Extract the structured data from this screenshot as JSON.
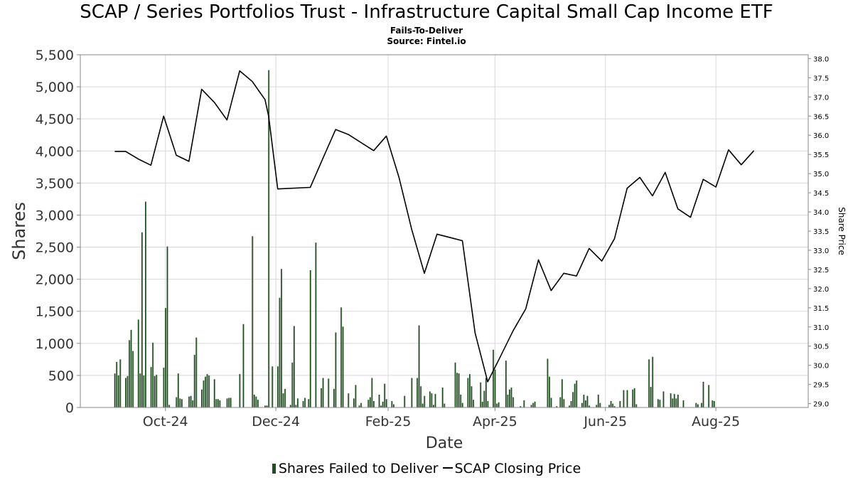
{
  "title": "SCAP / Series Portfolios Trust - Infrastructure Capital Small Cap Income ETF",
  "subtitle_lines": [
    "Fails-To-Deliver",
    "Source: Fintel.io"
  ],
  "legend": {
    "bars_label": "Shares Failed to Deliver",
    "line_label": "SCAP Closing Price"
  },
  "colors": {
    "bar": "#1a4a1a",
    "bar_shadow": "#8a9a8a",
    "line": "#000000",
    "grid": "#d9d9d9"
  },
  "chart_data": {
    "type": "bar",
    "xlabel": "Date",
    "ylabel": "Shares",
    "y2label": "Share Price",
    "ylim": [
      0,
      5500
    ],
    "y2lim": [
      28.9,
      38.1
    ],
    "x_ticks": [
      "Oct-24",
      "Dec-24",
      "Feb-25",
      "Apr-25",
      "Jun-25",
      "Aug-25"
    ],
    "x_tick_dates": [
      "2024-10-01",
      "2024-12-01",
      "2025-02-01",
      "2025-04-01",
      "2025-06-01",
      "2025-08-01"
    ],
    "y_ticks": [
      "0",
      "500",
      "1,000",
      "1,500",
      "2,000",
      "2,500",
      "3,000",
      "3,500",
      "4,000",
      "4,500",
      "5,000",
      "5,500"
    ],
    "y2_ticks": [
      "29.0",
      "29.5",
      "30.0",
      "30.5",
      "31.0",
      "31.5",
      "32.0",
      "32.5",
      "33.0",
      "33.5",
      "34.0",
      "34.5",
      "35.0",
      "35.5",
      "36.0",
      "36.5",
      "37.0",
      "37.5",
      "38.0"
    ],
    "x_range": [
      "2024-08-15",
      "2025-09-21"
    ],
    "grid": true,
    "series": [
      {
        "name": "Shares Failed to Deliver",
        "type": "bar",
        "points": [
          [
            "2024-09-03",
            530
          ],
          [
            "2024-09-04",
            710
          ],
          [
            "2024-09-05",
            500
          ],
          [
            "2024-09-06",
            750
          ],
          [
            "2024-09-09",
            460
          ],
          [
            "2024-09-10",
            490
          ],
          [
            "2024-09-11",
            1050
          ],
          [
            "2024-09-12",
            1210
          ],
          [
            "2024-09-13",
            880
          ],
          [
            "2024-09-16",
            1370
          ],
          [
            "2024-09-17",
            530
          ],
          [
            "2024-09-18",
            2730
          ],
          [
            "2024-09-19",
            500
          ],
          [
            "2024-09-20",
            3210
          ],
          [
            "2024-09-23",
            630
          ],
          [
            "2024-09-24",
            1010
          ],
          [
            "2024-09-25",
            490
          ],
          [
            "2024-09-26",
            510
          ],
          [
            "2024-09-30",
            620
          ],
          [
            "2024-10-01",
            1550
          ],
          [
            "2024-10-02",
            2510
          ],
          [
            "2024-10-03",
            40
          ],
          [
            "2024-10-07",
            160
          ],
          [
            "2024-10-08",
            530
          ],
          [
            "2024-10-09",
            140
          ],
          [
            "2024-10-10",
            130
          ],
          [
            "2024-10-14",
            170
          ],
          [
            "2024-10-15",
            180
          ],
          [
            "2024-10-16",
            110
          ],
          [
            "2024-10-17",
            820
          ],
          [
            "2024-10-18",
            1090
          ],
          [
            "2024-10-21",
            280
          ],
          [
            "2024-10-22",
            420
          ],
          [
            "2024-10-23",
            480
          ],
          [
            "2024-10-24",
            520
          ],
          [
            "2024-10-25",
            500
          ],
          [
            "2024-10-28",
            440
          ],
          [
            "2024-10-29",
            130
          ],
          [
            "2024-10-30",
            130
          ],
          [
            "2024-10-31",
            110
          ],
          [
            "2024-11-04",
            140
          ],
          [
            "2024-11-05",
            150
          ],
          [
            "2024-11-06",
            150
          ],
          [
            "2024-11-08",
            0
          ],
          [
            "2024-11-11",
            520
          ],
          [
            "2024-11-13",
            1300
          ],
          [
            "2024-11-15",
            0
          ],
          [
            "2024-11-18",
            2670
          ],
          [
            "2024-11-19",
            200
          ],
          [
            "2024-11-20",
            170
          ],
          [
            "2024-11-21",
            120
          ],
          [
            "2024-11-25",
            30
          ],
          [
            "2024-11-26",
            30
          ],
          [
            "2024-11-27",
            5260
          ],
          [
            "2024-11-29",
            640
          ],
          [
            "2024-12-02",
            640
          ],
          [
            "2024-12-03",
            1710
          ],
          [
            "2024-12-04",
            2160
          ],
          [
            "2024-12-05",
            220
          ],
          [
            "2024-12-06",
            290
          ],
          [
            "2024-12-09",
            40
          ],
          [
            "2024-12-10",
            700
          ],
          [
            "2024-12-11",
            1270
          ],
          [
            "2024-12-12",
            40
          ],
          [
            "2024-12-13",
            140
          ],
          [
            "2024-12-16",
            100
          ],
          [
            "2024-12-17",
            150
          ],
          [
            "2024-12-19",
            130
          ],
          [
            "2024-12-20",
            2140
          ],
          [
            "2024-12-23",
            2570
          ],
          [
            "2024-12-26",
            300
          ],
          [
            "2024-12-27",
            460
          ],
          [
            "2024-12-30",
            450
          ],
          [
            "2025-01-02",
            290
          ],
          [
            "2025-01-03",
            1170
          ],
          [
            "2025-01-06",
            1560
          ],
          [
            "2025-01-07",
            1260
          ],
          [
            "2025-01-10",
            220
          ],
          [
            "2025-01-13",
            140
          ],
          [
            "2025-01-14",
            350
          ],
          [
            "2025-01-16",
            30
          ],
          [
            "2025-01-17",
            70
          ],
          [
            "2025-01-21",
            120
          ],
          [
            "2025-01-22",
            160
          ],
          [
            "2025-01-23",
            460
          ],
          [
            "2025-01-24",
            100
          ],
          [
            "2025-01-27",
            200
          ],
          [
            "2025-01-28",
            30
          ],
          [
            "2025-01-29",
            90
          ],
          [
            "2025-01-30",
            370
          ],
          [
            "2025-01-31",
            130
          ],
          [
            "2025-02-03",
            100
          ],
          [
            "2025-02-04",
            50
          ],
          [
            "2025-02-10",
            180
          ],
          [
            "2025-02-14",
            460
          ],
          [
            "2025-02-17",
            460
          ],
          [
            "2025-02-18",
            1280
          ],
          [
            "2025-02-19",
            330
          ],
          [
            "2025-02-20",
            60
          ],
          [
            "2025-02-21",
            180
          ],
          [
            "2025-02-24",
            250
          ],
          [
            "2025-02-25",
            220
          ],
          [
            "2025-02-26",
            40
          ],
          [
            "2025-02-27",
            210
          ],
          [
            "2025-03-03",
            310
          ],
          [
            "2025-03-04",
            60
          ],
          [
            "2025-03-10",
            700
          ],
          [
            "2025-03-11",
            540
          ],
          [
            "2025-03-12",
            530
          ],
          [
            "2025-03-13",
            200
          ],
          [
            "2025-03-14",
            70
          ],
          [
            "2025-03-17",
            460
          ],
          [
            "2025-03-18",
            520
          ],
          [
            "2025-03-19",
            330
          ],
          [
            "2025-03-20",
            120
          ],
          [
            "2025-03-24",
            390
          ],
          [
            "2025-03-25",
            90
          ],
          [
            "2025-03-26",
            260
          ],
          [
            "2025-03-27",
            460
          ],
          [
            "2025-03-28",
            100
          ],
          [
            "2025-03-31",
            900
          ],
          [
            "2025-04-01",
            590
          ],
          [
            "2025-04-02",
            60
          ],
          [
            "2025-04-03",
            80
          ],
          [
            "2025-04-07",
            730
          ],
          [
            "2025-04-08",
            200
          ],
          [
            "2025-04-09",
            280
          ],
          [
            "2025-04-10",
            310
          ],
          [
            "2025-04-11",
            160
          ],
          [
            "2025-04-15",
            20
          ],
          [
            "2025-04-17",
            110
          ],
          [
            "2025-04-21",
            40
          ],
          [
            "2025-04-22",
            70
          ],
          [
            "2025-04-23",
            90
          ],
          [
            "2025-04-30",
            760
          ],
          [
            "2025-05-01",
            480
          ],
          [
            "2025-05-02",
            150
          ],
          [
            "2025-05-05",
            20
          ],
          [
            "2025-05-07",
            160
          ],
          [
            "2025-05-08",
            440
          ],
          [
            "2025-05-09",
            130
          ],
          [
            "2025-05-12",
            30
          ],
          [
            "2025-05-13",
            100
          ],
          [
            "2025-05-14",
            240
          ],
          [
            "2025-05-15",
            370
          ],
          [
            "2025-05-16",
            420
          ],
          [
            "2025-05-19",
            70
          ],
          [
            "2025-05-20",
            200
          ],
          [
            "2025-05-21",
            110
          ],
          [
            "2025-05-22",
            180
          ],
          [
            "2025-05-23",
            30
          ],
          [
            "2025-05-27",
            40
          ],
          [
            "2025-05-28",
            200
          ],
          [
            "2025-05-29",
            70
          ],
          [
            "2025-06-03",
            40
          ],
          [
            "2025-06-04",
            100
          ],
          [
            "2025-06-05",
            60
          ],
          [
            "2025-06-06",
            20
          ],
          [
            "2025-06-09",
            100
          ],
          [
            "2025-06-11",
            270
          ],
          [
            "2025-06-13",
            270
          ],
          [
            "2025-06-16",
            280
          ],
          [
            "2025-06-17",
            300
          ],
          [
            "2025-06-18",
            50
          ],
          [
            "2025-06-25",
            750
          ],
          [
            "2025-06-26",
            320
          ],
          [
            "2025-06-27",
            790
          ],
          [
            "2025-06-30",
            130
          ],
          [
            "2025-07-01",
            120
          ],
          [
            "2025-07-03",
            250
          ],
          [
            "2025-07-07",
            220
          ],
          [
            "2025-07-08",
            140
          ],
          [
            "2025-07-09",
            210
          ],
          [
            "2025-07-10",
            140
          ],
          [
            "2025-07-11",
            200
          ],
          [
            "2025-07-14",
            110
          ],
          [
            "2025-07-21",
            70
          ],
          [
            "2025-07-22",
            50
          ],
          [
            "2025-07-24",
            70
          ],
          [
            "2025-07-25",
            400
          ],
          [
            "2025-07-28",
            350
          ],
          [
            "2025-07-30",
            110
          ],
          [
            "2025-07-31",
            100
          ]
        ]
      },
      {
        "name": "SCAP Closing Price",
        "type": "line",
        "points": [
          [
            "2024-09-03",
            35.58
          ],
          [
            "2024-09-09",
            35.58
          ],
          [
            "2024-09-16",
            35.38
          ],
          [
            "2024-09-23",
            35.22
          ],
          [
            "2024-09-30",
            36.5
          ],
          [
            "2024-10-07",
            35.48
          ],
          [
            "2024-10-14",
            35.32
          ],
          [
            "2024-10-21",
            37.2
          ],
          [
            "2024-10-28",
            36.86
          ],
          [
            "2024-11-04",
            36.4
          ],
          [
            "2024-11-11",
            37.68
          ],
          [
            "2024-11-18",
            37.4
          ],
          [
            "2024-11-25",
            36.93
          ],
          [
            "2024-11-27",
            36.5
          ],
          [
            "2024-12-02",
            34.6
          ],
          [
            "2024-12-20",
            34.64
          ],
          [
            "2024-12-27",
            35.4
          ],
          [
            "2025-01-03",
            36.15
          ],
          [
            "2025-01-10",
            36.02
          ],
          [
            "2025-01-24",
            35.6
          ],
          [
            "2025-01-31",
            35.98
          ],
          [
            "2025-02-07",
            34.9
          ],
          [
            "2025-02-14",
            33.55
          ],
          [
            "2025-02-21",
            32.4
          ],
          [
            "2025-02-28",
            33.42
          ],
          [
            "2025-03-14",
            33.25
          ],
          [
            "2025-03-21",
            30.85
          ],
          [
            "2025-03-28",
            29.57
          ],
          [
            "2025-04-04",
            30.23
          ],
          [
            "2025-04-11",
            30.9
          ],
          [
            "2025-04-18",
            31.47
          ],
          [
            "2025-04-25",
            32.75
          ],
          [
            "2025-05-02",
            31.95
          ],
          [
            "2025-05-09",
            32.4
          ],
          [
            "2025-05-16",
            32.33
          ],
          [
            "2025-05-23",
            33.05
          ],
          [
            "2025-05-30",
            32.72
          ],
          [
            "2025-06-06",
            33.3
          ],
          [
            "2025-06-13",
            34.62
          ],
          [
            "2025-06-20",
            34.9
          ],
          [
            "2025-06-27",
            34.42
          ],
          [
            "2025-07-04",
            35.03
          ],
          [
            "2025-07-11",
            34.08
          ],
          [
            "2025-07-18",
            33.86
          ],
          [
            "2025-07-25",
            34.85
          ],
          [
            "2025-08-01",
            34.65
          ],
          [
            "2025-08-08",
            35.62
          ],
          [
            "2025-08-15",
            35.23
          ],
          [
            "2025-08-22",
            35.6
          ]
        ]
      }
    ]
  }
}
